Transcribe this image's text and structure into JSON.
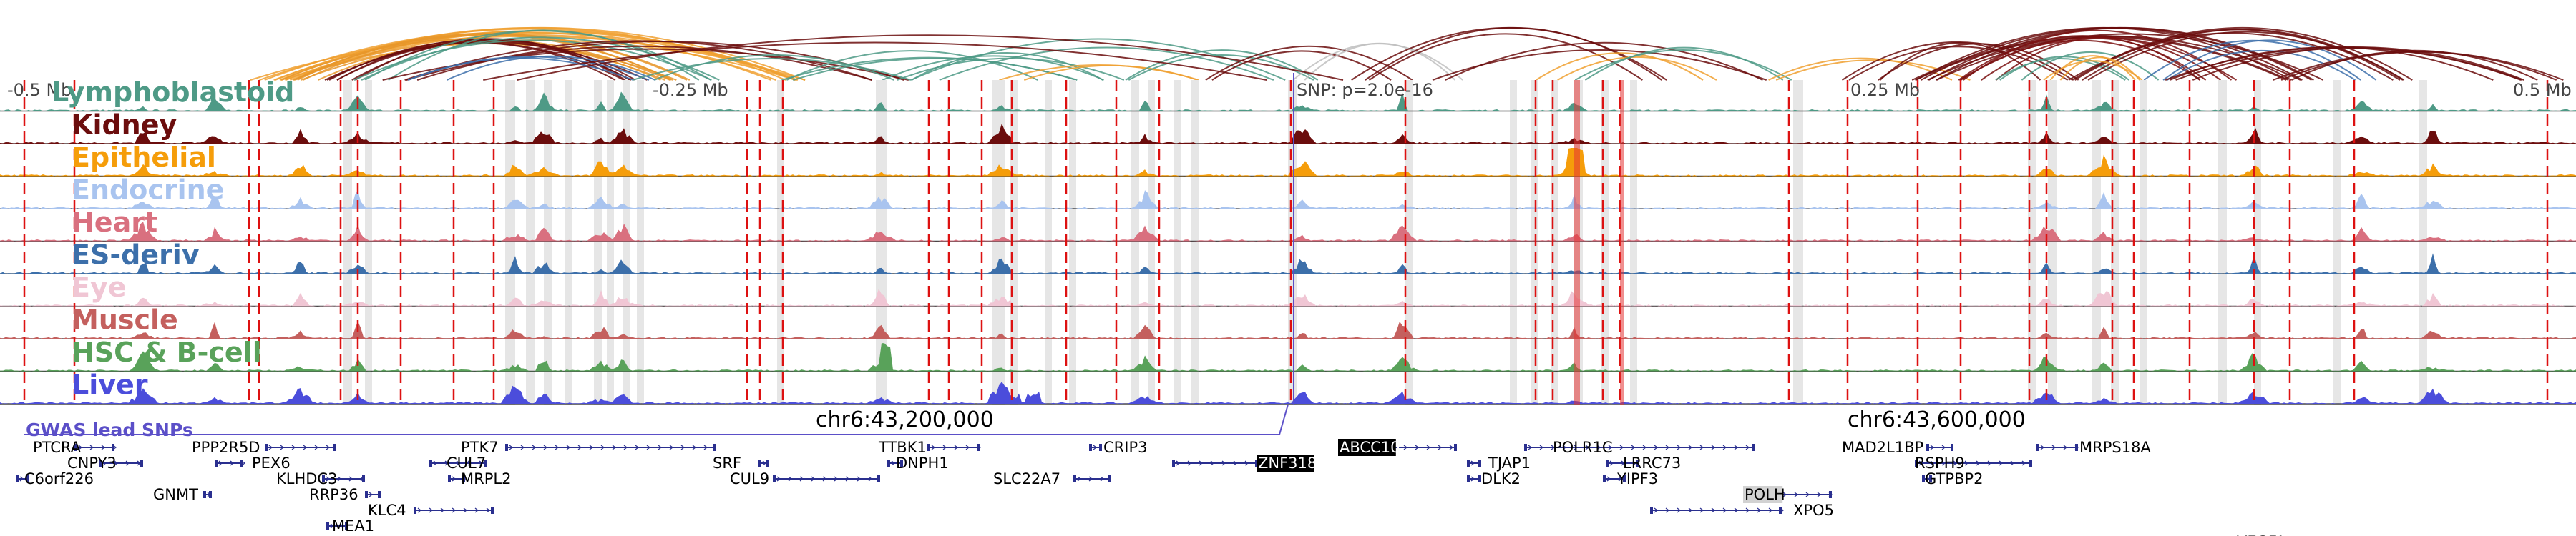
{
  "tracks": [
    {
      "name": "Lymphoblastoid",
      "color": "#4e9a86"
    },
    {
      "name": "Kidney",
      "color": "#6b0d0d"
    },
    {
      "name": "Epithelial",
      "color": "#f59d0a"
    },
    {
      "name": "Endocrine",
      "color": "#a9c4ef"
    },
    {
      "name": "Heart",
      "color": "#d9707f"
    },
    {
      "name": "ES-deriv",
      "color": "#3c6faa"
    },
    {
      "name": "Eye",
      "color": "#f0c6d4"
    },
    {
      "name": "Muscle",
      "color": "#c4605e"
    },
    {
      "name": "HSC & B-cell",
      "color": "#59a25a"
    },
    {
      "name": "Liver",
      "color": "#4b4ddb"
    }
  ],
  "axis": {
    "left_label": "-0.5 Mb",
    "mid_left_label": "-0.25 Mb",
    "snp_label": "SNP: p=2.0e-16",
    "mid_right_label": "0.25 Mb",
    "right_label": "0.5 Mb"
  },
  "coordinates": {
    "left": "chr6:43,200,000",
    "right": "chr6:43,600,000"
  },
  "gwas_label": "GWAS lead SNPs",
  "colors": {
    "highlight_line": "#dd1111",
    "shaded_band": "#e6e6e6",
    "gene": "#2a2f8f",
    "gwas": "#5b4fc8"
  },
  "genes": [
    {
      "name": "PTCRA",
      "highlight": false
    },
    {
      "name": "CNPY3",
      "highlight": false
    },
    {
      "name": "C6orf226",
      "highlight": false
    },
    {
      "name": "GNMT",
      "highlight": false
    },
    {
      "name": "PPP2R5D",
      "highlight": false
    },
    {
      "name": "PEX6",
      "highlight": false
    },
    {
      "name": "KLHDC3",
      "highlight": false
    },
    {
      "name": "RRP36",
      "highlight": false
    },
    {
      "name": "KLC4",
      "highlight": false
    },
    {
      "name": "MEA1",
      "highlight": false
    },
    {
      "name": "PTK7",
      "highlight": false
    },
    {
      "name": "CUL7",
      "highlight": false
    },
    {
      "name": "MRPL2",
      "highlight": false
    },
    {
      "name": "SRF",
      "highlight": false
    },
    {
      "name": "CUL9",
      "highlight": false
    },
    {
      "name": "TTBK1",
      "highlight": false
    },
    {
      "name": "DNPH1",
      "highlight": false
    },
    {
      "name": "SLC22A7",
      "highlight": false
    },
    {
      "name": "CRIP3",
      "highlight": false
    },
    {
      "name": "ZNF318",
      "highlight": true
    },
    {
      "name": "ABCC10",
      "highlight": true
    },
    {
      "name": "TJAP1",
      "highlight": false
    },
    {
      "name": "DLK2",
      "highlight": false
    },
    {
      "name": "POLR1C",
      "highlight": false
    },
    {
      "name": "LRRC73",
      "highlight": false
    },
    {
      "name": "YIPF3",
      "highlight": false
    },
    {
      "name": "POLH",
      "highlight": "light"
    },
    {
      "name": "XPO5",
      "highlight": false
    },
    {
      "name": "MAD2L1BP",
      "highlight": false
    },
    {
      "name": "RSPH9",
      "highlight": false
    },
    {
      "name": "GTPBP2",
      "highlight": false
    },
    {
      "name": "MRPS18A",
      "highlight": false
    },
    {
      "name": "VEGFA",
      "highlight": false
    }
  ]
}
